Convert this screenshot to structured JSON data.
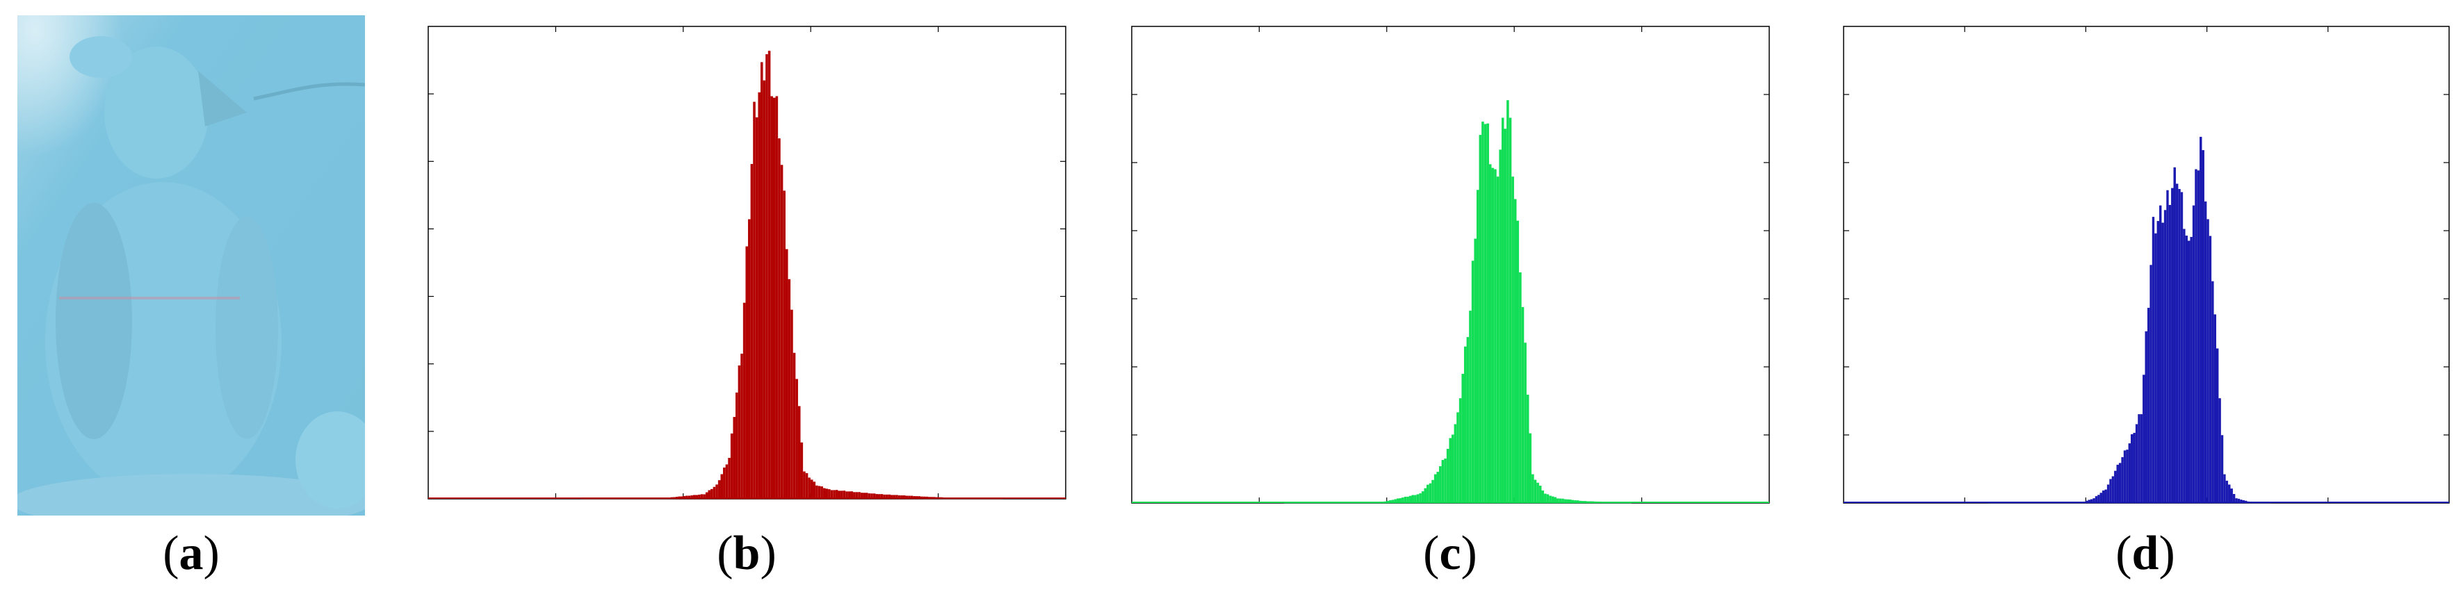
{
  "panels": [
    {
      "label_open": "(",
      "label_letter": "a",
      "label_close": ")"
    },
    {
      "label_open": "(",
      "label_letter": "b",
      "label_close": ")"
    },
    {
      "label_open": "(",
      "label_letter": "c",
      "label_close": ")"
    },
    {
      "label_open": "(",
      "label_letter": "d",
      "label_close": ")"
    }
  ],
  "chart_data": [
    {
      "type": "bar",
      "title": "",
      "xlabel": "",
      "ylabel": "",
      "channel": "red",
      "color": "#b30000",
      "xlim": [
        0,
        255
      ],
      "ylim": [
        0,
        1
      ],
      "grid": false,
      "x": [
        0,
        60,
        95,
        110,
        115,
        120,
        125,
        130,
        135,
        140,
        145,
        150,
        155,
        160,
        170,
        180,
        200,
        210,
        230,
        255
      ],
      "values": [
        0,
        0,
        0.002,
        0.01,
        0.03,
        0.09,
        0.33,
        0.84,
        0.98,
        0.82,
        0.4,
        0.06,
        0.03,
        0.02,
        0.015,
        0.01,
        0.004,
        0.002,
        0,
        0
      ]
    },
    {
      "type": "bar",
      "title": "",
      "xlabel": "",
      "ylabel": "",
      "channel": "green",
      "color": "#11dd55",
      "xlim": [
        0,
        255
      ],
      "ylim": [
        0,
        1
      ],
      "grid": false,
      "x": [
        0,
        60,
        100,
        115,
        120,
        125,
        130,
        135,
        140,
        145,
        150,
        155,
        160,
        165,
        170,
        180,
        200,
        255
      ],
      "values": [
        0,
        0,
        0.002,
        0.02,
        0.05,
        0.1,
        0.19,
        0.42,
        0.86,
        0.7,
        0.88,
        0.52,
        0.06,
        0.02,
        0.01,
        0.004,
        0,
        0
      ]
    },
    {
      "type": "bar",
      "title": "",
      "xlabel": "",
      "ylabel": "",
      "channel": "blue",
      "color": "#1a1ab0",
      "xlim": [
        0,
        255
      ],
      "ylim": [
        0,
        1
      ],
      "grid": false,
      "x": [
        0,
        60,
        100,
        105,
        110,
        115,
        120,
        125,
        130,
        135,
        140,
        145,
        150,
        155,
        160,
        165,
        170,
        180,
        255
      ],
      "values": [
        0,
        0,
        0.001,
        0.01,
        0.03,
        0.08,
        0.13,
        0.2,
        0.6,
        0.64,
        0.72,
        0.55,
        0.8,
        0.5,
        0.06,
        0.01,
        0.003,
        0,
        0
      ]
    }
  ]
}
